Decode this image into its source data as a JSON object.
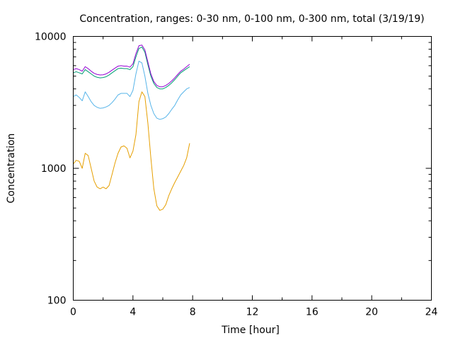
{
  "chart_data": {
    "type": "line",
    "title": "Concentration, ranges: 0-30 nm, 0-100 nm, 0-300 nm, total (3/19/19)",
    "xlabel": "Time [hour]",
    "ylabel": "Concentration",
    "xlim": [
      0,
      24
    ],
    "ylim": [
      100,
      10000
    ],
    "yscale": "log",
    "grid": false,
    "legend": "none",
    "x_ticks": [
      0,
      4,
      8,
      12,
      16,
      20,
      24
    ],
    "x_tick_labels": [
      "0",
      "4",
      "8",
      "12",
      "16",
      "20",
      "24"
    ],
    "y_major_ticks": [
      100,
      1000,
      10000
    ],
    "y_tick_labels": [
      "100",
      "1000",
      "10000"
    ],
    "x": [
      0.0,
      0.2,
      0.4,
      0.6,
      0.8,
      1.0,
      1.2,
      1.4,
      1.6,
      1.8,
      2.0,
      2.2,
      2.4,
      2.6,
      2.8,
      3.0,
      3.2,
      3.4,
      3.6,
      3.8,
      4.0,
      4.2,
      4.4,
      4.6,
      4.8,
      5.0,
      5.2,
      5.4,
      5.6,
      5.8,
      6.0,
      6.2,
      6.4,
      6.6,
      6.8,
      7.0,
      7.2,
      7.4,
      7.6,
      7.8
    ],
    "series": [
      {
        "name": "0-30 nm",
        "color": "#e69f00",
        "values": [
          1080,
          1150,
          1130,
          1000,
          1300,
          1250,
          1000,
          800,
          720,
          700,
          720,
          700,
          740,
          900,
          1100,
          1300,
          1450,
          1480,
          1420,
          1200,
          1350,
          1800,
          3200,
          3800,
          3500,
          2200,
          1200,
          700,
          520,
          480,
          490,
          530,
          620,
          700,
          780,
          860,
          950,
          1050,
          1200,
          1550
        ]
      },
      {
        "name": "0-100 nm",
        "color": "#56b4e9",
        "values": [
          3500,
          3600,
          3450,
          3250,
          3800,
          3500,
          3200,
          3000,
          2900,
          2850,
          2870,
          2920,
          3000,
          3150,
          3350,
          3600,
          3700,
          3700,
          3700,
          3500,
          3900,
          5200,
          6500,
          6300,
          5000,
          3700,
          3000,
          2600,
          2400,
          2350,
          2380,
          2450,
          2600,
          2800,
          3000,
          3300,
          3600,
          3800,
          4000,
          4100
        ]
      },
      {
        "name": "0-300 nm",
        "color": "#009e73",
        "values": [
          5300,
          5400,
          5300,
          5200,
          5600,
          5400,
          5200,
          5000,
          4900,
          4850,
          4880,
          4950,
          5100,
          5300,
          5500,
          5700,
          5750,
          5700,
          5700,
          5600,
          5900,
          7000,
          8100,
          8300,
          7600,
          6100,
          5000,
          4400,
          4100,
          4000,
          4000,
          4100,
          4250,
          4450,
          4700,
          5000,
          5300,
          5500,
          5700,
          5900
        ]
      },
      {
        "name": "total",
        "color": "#9400d3",
        "values": [
          5600,
          5700,
          5600,
          5450,
          5900,
          5700,
          5450,
          5250,
          5150,
          5100,
          5120,
          5200,
          5350,
          5550,
          5750,
          5950,
          6000,
          5950,
          5950,
          5850,
          6200,
          7400,
          8500,
          8600,
          7900,
          6400,
          5200,
          4550,
          4250,
          4150,
          4150,
          4250,
          4400,
          4600,
          4850,
          5150,
          5450,
          5650,
          5900,
          6150
        ]
      }
    ]
  }
}
